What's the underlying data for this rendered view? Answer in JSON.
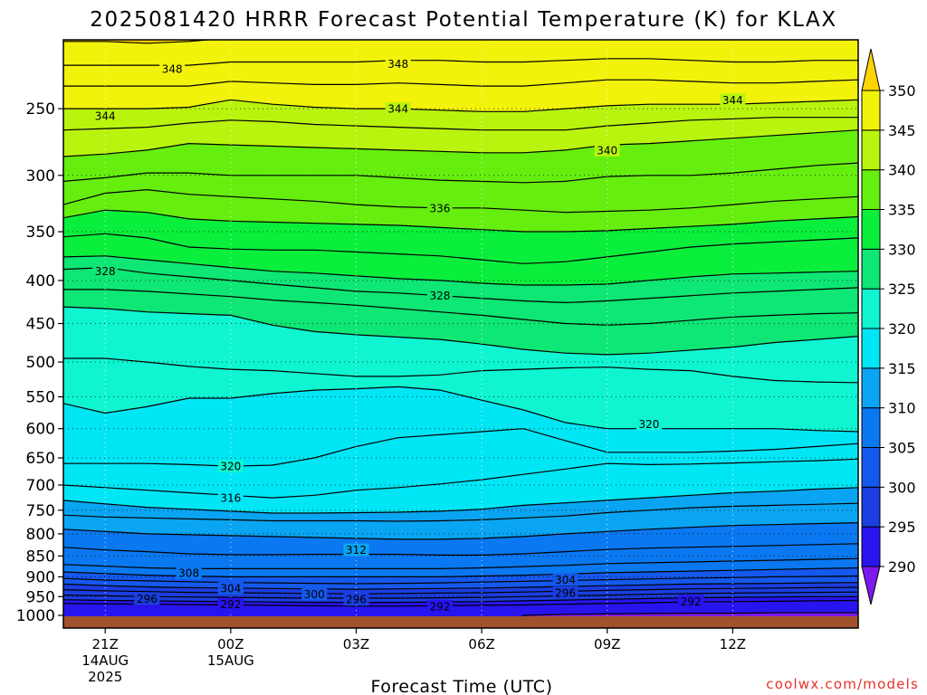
{
  "chart_data": {
    "type": "contour",
    "title": "2025081420 HRRR Forecast Potential Temperature (K) for KLAX",
    "xlabel": "Forecast Time (UTC)",
    "credit": "coolwx.com/models",
    "y_axis": {
      "variable": "pressure (hPa)",
      "scale": "log",
      "ylim": [
        1000,
        200
      ],
      "ticks": [
        250,
        300,
        350,
        400,
        450,
        500,
        550,
        600,
        650,
        700,
        750,
        800,
        850,
        900,
        950,
        1000
      ]
    },
    "x_axis": {
      "xlim_hours_after_20Z": [
        0,
        19
      ],
      "ticks": [
        {
          "hour": 1,
          "label": "21Z",
          "sub": [
            "14AUG",
            "2025"
          ]
        },
        {
          "hour": 4,
          "label": "00Z",
          "sub": [
            "15AUG"
          ]
        },
        {
          "hour": 7,
          "label": "03Z",
          "sub": []
        },
        {
          "hour": 10,
          "label": "06Z",
          "sub": []
        },
        {
          "hour": 13,
          "label": "09Z",
          "sub": []
        },
        {
          "hour": 16,
          "label": "12Z",
          "sub": []
        }
      ]
    },
    "grid": "dotted",
    "colorbar": {
      "levels": [
        290,
        295,
        300,
        305,
        310,
        315,
        320,
        325,
        330,
        335,
        340,
        345,
        350
      ],
      "colors": [
        "#7d18ee",
        "#2814ef",
        "#1a3ee0",
        "#1459ec",
        "#0a78f0",
        "#0aa5f2",
        "#00e6f5",
        "#0ff5d2",
        "#0ee675",
        "#0aef3c",
        "#66ee0f",
        "#b9f40f",
        "#f2f20a",
        "#ffd400"
      ],
      "extend": "both"
    },
    "contour_interval": 2,
    "time_hours": [
      0,
      1,
      2,
      3,
      4,
      5,
      6,
      7,
      8,
      9,
      10,
      11,
      12,
      13,
      14,
      15,
      16,
      17,
      18,
      19
    ],
    "pressure_levels": [
      1000,
      975,
      950,
      925,
      900,
      875,
      850,
      825,
      800,
      775,
      750,
      725,
      700,
      650,
      600,
      550,
      500,
      450,
      400,
      350,
      300,
      250,
      200
    ],
    "isentropes": [
      {
        "theta": 350,
        "p": [
          208,
          208,
          209,
          208,
          206,
          207,
          207,
          206,
          206,
          206,
          206,
          206,
          204,
          206,
          206,
          206,
          206,
          206,
          205,
          204
        ]
      },
      {
        "theta": 348,
        "p": [
          222,
          222,
          222,
          222,
          220,
          220,
          220,
          220,
          219,
          219,
          220,
          220,
          219,
          218,
          218,
          219,
          220,
          220,
          219,
          219
        ]
      },
      {
        "theta": 346,
        "p": [
          235,
          235,
          235,
          235,
          232,
          233,
          234,
          234,
          233,
          234,
          235,
          235,
          233,
          231,
          231,
          232,
          233,
          233,
          232,
          231
        ]
      },
      {
        "theta": 344,
        "p": [
          250,
          250,
          250,
          249,
          244,
          247,
          249,
          250,
          250,
          251,
          252,
          252,
          250,
          248,
          247,
          247,
          247,
          246,
          245,
          244
        ]
      },
      {
        "theta": 342,
        "p": [
          265,
          264,
          263,
          260,
          258,
          259,
          261,
          262,
          263,
          264,
          265,
          265,
          265,
          262,
          260,
          258,
          257,
          256,
          256,
          256
        ]
      },
      {
        "theta": 340,
        "p": [
          285,
          283,
          280,
          275,
          276,
          277,
          278,
          279,
          280,
          281,
          282,
          282,
          280,
          276,
          275,
          273,
          271,
          269,
          267,
          265
        ]
      },
      {
        "theta": 338,
        "p": [
          305,
          302,
          298,
          298,
          300,
          300,
          300,
          300,
          302,
          304,
          305,
          306,
          305,
          301,
          300,
          300,
          298,
          295,
          292,
          290
        ]
      },
      {
        "theta": 336,
        "p": [
          325,
          315,
          312,
          316,
          318,
          320,
          322,
          325,
          327,
          328,
          328,
          330,
          332,
          331,
          330,
          328,
          325,
          322,
          320,
          318
        ]
      },
      {
        "theta": 334,
        "p": [
          337,
          330,
          332,
          338,
          340,
          341,
          342,
          343,
          344,
          346,
          348,
          350,
          350,
          349,
          347,
          345,
          343,
          340,
          338,
          336
        ]
      },
      {
        "theta": 332,
        "p": [
          355,
          352,
          356,
          365,
          367,
          368,
          368,
          370,
          372,
          374,
          378,
          382,
          380,
          375,
          370,
          365,
          362,
          360,
          358,
          356
        ]
      },
      {
        "theta": 330,
        "p": [
          375,
          374,
          378,
          382,
          386,
          390,
          392,
          395,
          398,
          400,
          403,
          405,
          405,
          404,
          400,
          396,
          393,
          392,
          391,
          390
        ]
      },
      {
        "theta": 328,
        "p": [
          388,
          386,
          392,
          396,
          400,
          404,
          408,
          412,
          414,
          417,
          420,
          423,
          425,
          423,
          420,
          417,
          414,
          412,
          410,
          408
        ]
      },
      {
        "theta": 326,
        "p": [
          410,
          410,
          412,
          415,
          418,
          422,
          425,
          428,
          432,
          436,
          440,
          445,
          450,
          452,
          450,
          446,
          442,
          440,
          438,
          437
        ]
      },
      {
        "theta": 324,
        "p": [
          430,
          432,
          436,
          438,
          440,
          452,
          460,
          464,
          467,
          470,
          476,
          483,
          488,
          490,
          488,
          484,
          480,
          474,
          470,
          466
        ]
      },
      {
        "theta": 322,
        "p": [
          495,
          495,
          500,
          506,
          510,
          512,
          516,
          520,
          520,
          518,
          512,
          510,
          508,
          507,
          510,
          512,
          520,
          526,
          528,
          529
        ]
      },
      {
        "theta": 320,
        "p": [
          560,
          575,
          565,
          552,
          552,
          545,
          540,
          538,
          535,
          540,
          555,
          570,
          590,
          600,
          600,
          600,
          600,
          600,
          603,
          605
        ]
      },
      {
        "theta": 318,
        "p": [
          660,
          660,
          660,
          662,
          665,
          663,
          650,
          630,
          615,
          610,
          605,
          600,
          620,
          640,
          640,
          640,
          638,
          635,
          630,
          625
        ]
      },
      {
        "theta": 316,
        "p": [
          700,
          705,
          710,
          715,
          720,
          725,
          720,
          710,
          705,
          698,
          690,
          680,
          670,
          660,
          662,
          661,
          659,
          657,
          655,
          652
        ]
      },
      {
        "theta": 314,
        "p": [
          730,
          737,
          744,
          748,
          752,
          756,
          756,
          755,
          754,
          752,
          748,
          740,
          735,
          730,
          725,
          720,
          715,
          712,
          708,
          705
        ]
      },
      {
        "theta": 312,
        "p": [
          760,
          764,
          766,
          768,
          770,
          772,
          772,
          772,
          773,
          772,
          770,
          766,
          762,
          755,
          750,
          745,
          742,
          740,
          738,
          736
        ]
      },
      {
        "theta": 310,
        "p": [
          790,
          795,
          800,
          802,
          804,
          806,
          808,
          810,
          812,
          812,
          810,
          806,
          800,
          795,
          790,
          786,
          782,
          780,
          778,
          776
        ]
      },
      {
        "theta": 308,
        "p": [
          830,
          836,
          840,
          845,
          847,
          847,
          846,
          846,
          846,
          848,
          848,
          845,
          840,
          835,
          832,
          830,
          828,
          826,
          824,
          822
        ]
      },
      {
        "theta": 306,
        "p": [
          870,
          874,
          878,
          880,
          880,
          880,
          880,
          880,
          880,
          880,
          878,
          875,
          872,
          868,
          866,
          864,
          862,
          860,
          858,
          856
        ]
      },
      {
        "theta": 304,
        "p": [
          888,
          892,
          896,
          898,
          900,
          900,
          900,
          900,
          900,
          900,
          898,
          896,
          893,
          890,
          888,
          886,
          884,
          882,
          880,
          878
        ]
      },
      {
        "theta": 302,
        "p": [
          904,
          908,
          910,
          912,
          914,
          915,
          916,
          917,
          916,
          915,
          913,
          911,
          909,
          907,
          905,
          903,
          902,
          900,
          899,
          898
        ]
      },
      {
        "theta": 300,
        "p": [
          918,
          922,
          925,
          927,
          928,
          929,
          930,
          931,
          930,
          929,
          928,
          926,
          924,
          922,
          920,
          918,
          917,
          916,
          915,
          914
        ]
      },
      {
        "theta": 298,
        "p": [
          932,
          935,
          937,
          939,
          940,
          941,
          942,
          943,
          942,
          941,
          940,
          938,
          936,
          934,
          932,
          930,
          929,
          928,
          927,
          926
        ]
      },
      {
        "theta": 296,
        "p": [
          946,
          948,
          950,
          951,
          952,
          953,
          954,
          954,
          954,
          953,
          952,
          950,
          948,
          946,
          944,
          942,
          941,
          940,
          939,
          938
        ]
      },
      {
        "theta": 294,
        "p": [
          958,
          960,
          961,
          962,
          963,
          964,
          965,
          965,
          965,
          964,
          963,
          961,
          959,
          957,
          955,
          953,
          952,
          951,
          950,
          950
        ]
      },
      {
        "theta": 292,
        "p": [
          968,
          969,
          970,
          971,
          972,
          973,
          974,
          975,
          975,
          974,
          973,
          972,
          970,
          968,
          966,
          964,
          963,
          962,
          961,
          960
        ]
      },
      {
        "theta": 290,
        "p": [
          1100,
          1100,
          1100,
          1100,
          1100,
          1100,
          1100,
          1100,
          1100,
          1100,
          1100,
          1000,
          997,
          996,
          995,
          994,
          994,
          993,
          993,
          993
        ]
      }
    ],
    "contour_labels": [
      {
        "text": "348",
        "hour": 2.6,
        "p": 224
      },
      {
        "text": "348",
        "hour": 8.0,
        "p": 221
      },
      {
        "text": "344",
        "hour": 1.0,
        "p": 255
      },
      {
        "text": "344",
        "hour": 8.0,
        "p": 250
      },
      {
        "text": "344",
        "hour": 16.0,
        "p": 244
      },
      {
        "text": "340",
        "hour": 13.0,
        "p": 280
      },
      {
        "text": "336",
        "hour": 9.0,
        "p": 328
      },
      {
        "text": "328",
        "hour": 1.0,
        "p": 390
      },
      {
        "text": "328",
        "hour": 9.0,
        "p": 417
      },
      {
        "text": "320",
        "hour": 14.0,
        "p": 592
      },
      {
        "text": "320",
        "hour": 4.0,
        "p": 665
      },
      {
        "text": "316",
        "hour": 4.0,
        "p": 725
      },
      {
        "text": "312",
        "hour": 7.0,
        "p": 836
      },
      {
        "text": "308",
        "hour": 3.0,
        "p": 890
      },
      {
        "text": "304",
        "hour": 4.0,
        "p": 928
      },
      {
        "text": "304",
        "hour": 12.0,
        "p": 907
      },
      {
        "text": "300",
        "hour": 6.0,
        "p": 943
      },
      {
        "text": "296",
        "hour": 2.0,
        "p": 955
      },
      {
        "text": "296",
        "hour": 7.0,
        "p": 957
      },
      {
        "text": "296",
        "hour": 12.0,
        "p": 940
      },
      {
        "text": "292",
        "hour": 4.0,
        "p": 970
      },
      {
        "text": "292",
        "hour": 9.0,
        "p": 975
      },
      {
        "text": "292",
        "hour": 15.0,
        "p": 962
      }
    ]
  }
}
